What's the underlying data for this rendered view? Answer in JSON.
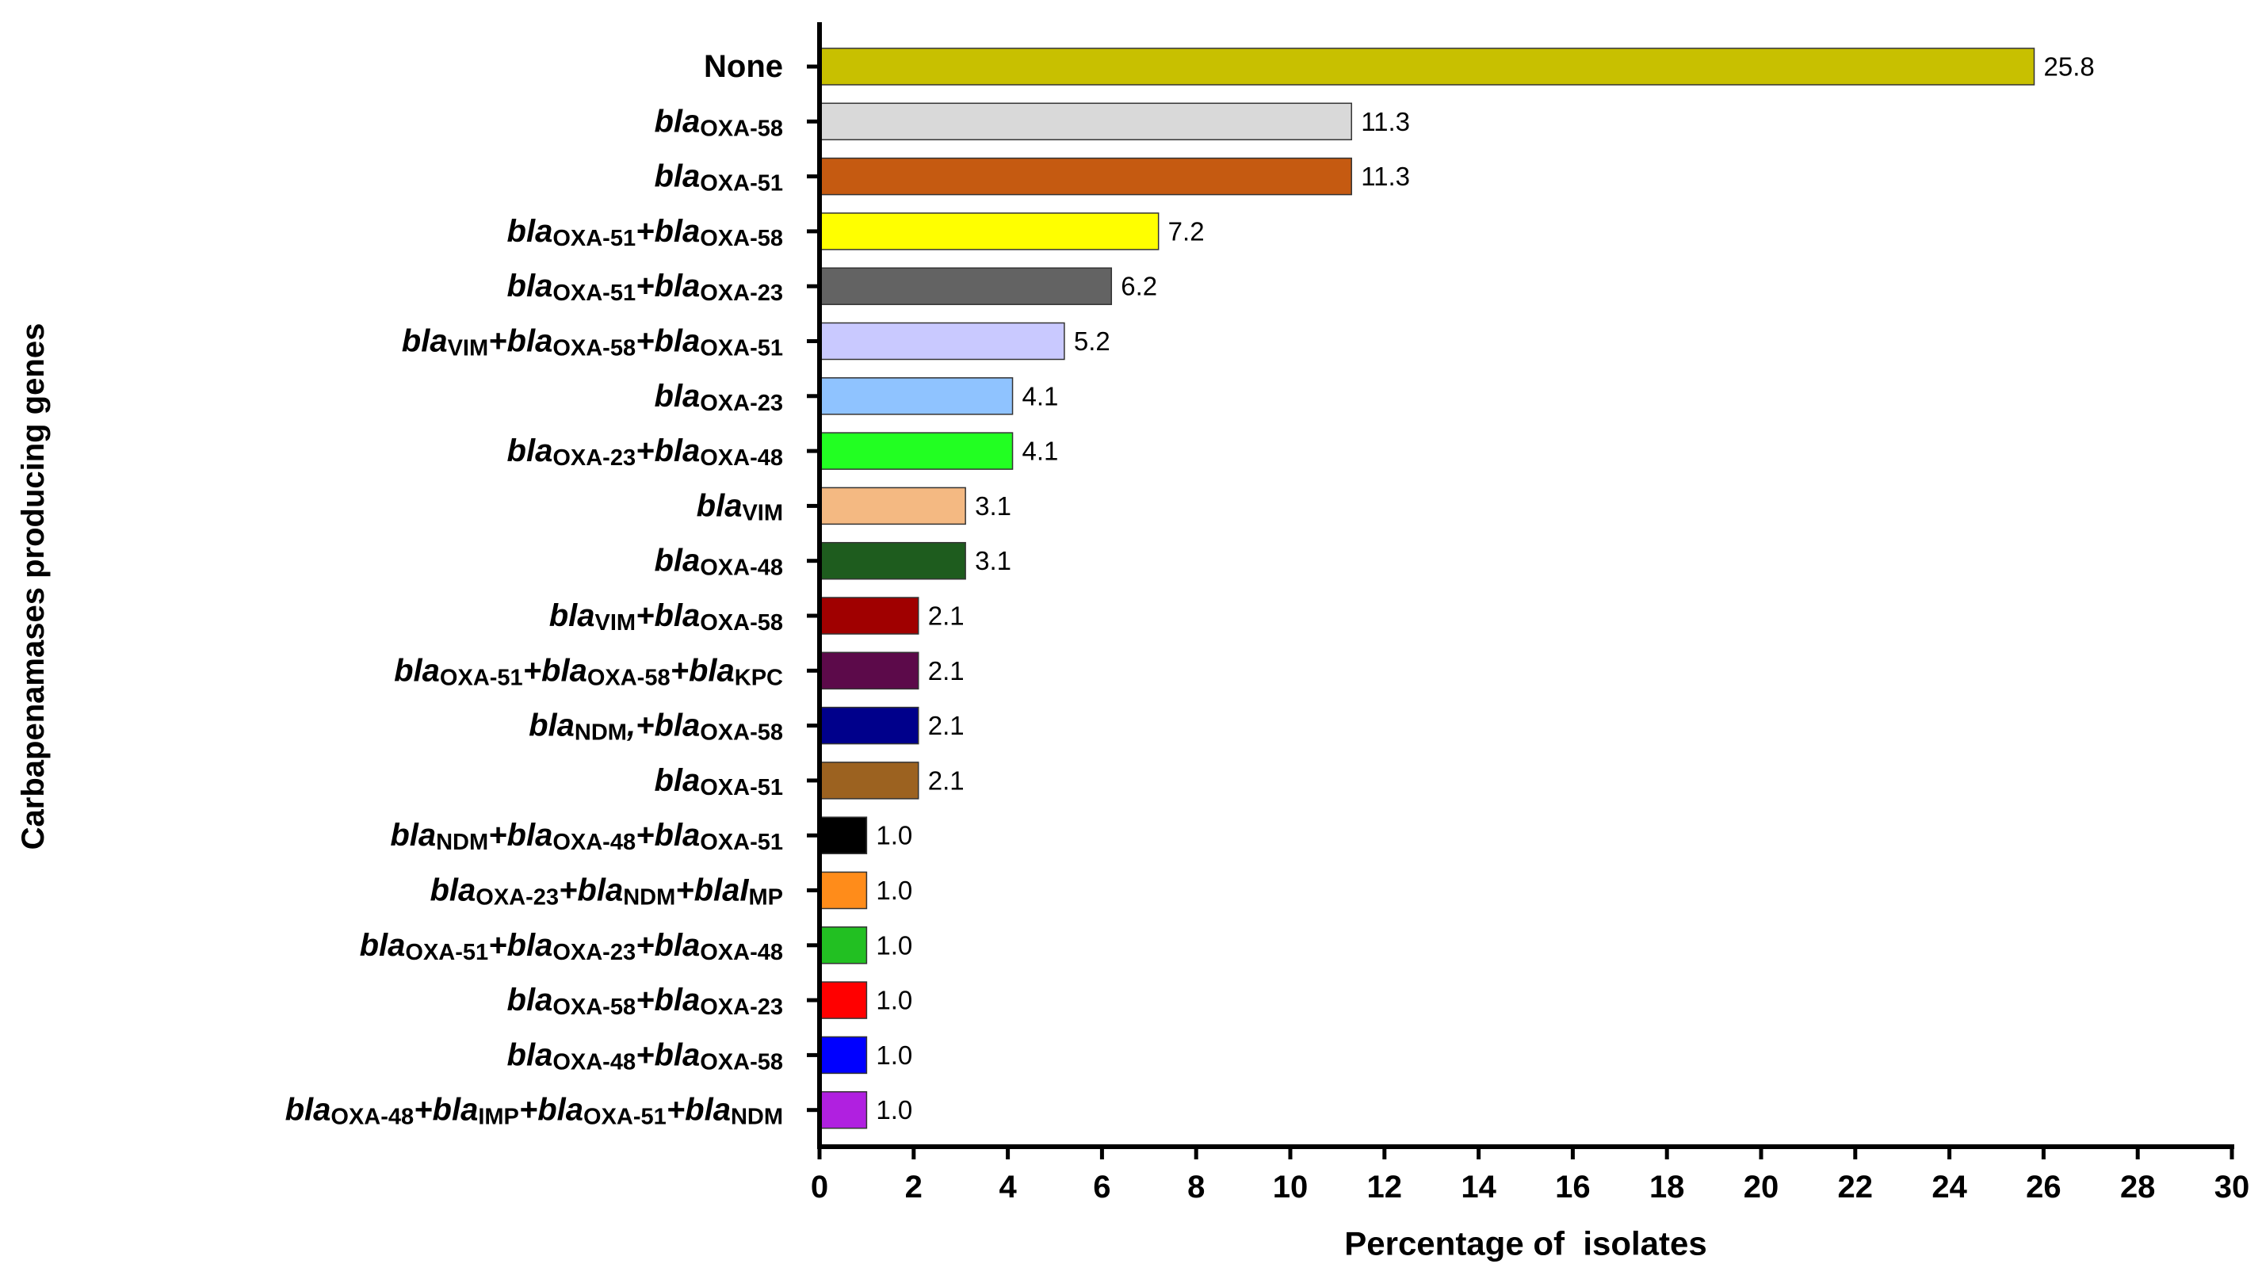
{
  "chart_data": {
    "type": "barh",
    "xlabel": "Percentage of  isolates",
    "ylabel": "Carbapenamases producing genes",
    "categories": [
      [
        [
          "None"
        ]
      ],
      [
        [
          "bla",
          "OXA-58"
        ]
      ],
      [
        [
          "bla",
          "OXA-51"
        ]
      ],
      [
        [
          "bla",
          "OXA-51"
        ],
        [
          "+bla",
          "OXA-58"
        ]
      ],
      [
        [
          "bla",
          "OXA-51"
        ],
        [
          "+bla",
          "OXA-23"
        ]
      ],
      [
        [
          "bla",
          "VIM"
        ],
        [
          "+bla",
          "OXA-58"
        ],
        [
          "+bla",
          "OXA-51"
        ]
      ],
      [
        [
          "bla",
          "OXA-23"
        ]
      ],
      [
        [
          "bla",
          "OXA-23"
        ],
        [
          "+bla",
          "OXA-48"
        ]
      ],
      [
        [
          "bla",
          "VIM"
        ]
      ],
      [
        [
          "bla",
          "OXA-48"
        ]
      ],
      [
        [
          "bla",
          "VIM"
        ],
        [
          "+bla",
          "OXA-58"
        ]
      ],
      [
        [
          "bla",
          "OXA-51"
        ],
        [
          "+bla",
          "OXA-58"
        ],
        [
          "+bla",
          "KPC"
        ]
      ],
      [
        [
          "bla",
          "NDM"
        ],
        [
          ",+bla",
          "OXA-58"
        ]
      ],
      [
        [
          "bla",
          "OXA-51"
        ]
      ],
      [
        [
          "bla",
          "NDM"
        ],
        [
          "+bla",
          "OXA-48"
        ],
        [
          "+bla",
          "OXA-51"
        ]
      ],
      [
        [
          "bla",
          "OXA-23"
        ],
        [
          "+bla",
          "NDM"
        ],
        [
          "+blaI",
          "MP"
        ]
      ],
      [
        [
          "bla",
          "OXA-51"
        ],
        [
          "+bla",
          "OXA-23"
        ],
        [
          "+bla",
          "OXA-48"
        ]
      ],
      [
        [
          "bla",
          "OXA-58"
        ],
        [
          "+bla",
          "OXA-23"
        ]
      ],
      [
        [
          "bla",
          "OXA-48"
        ],
        [
          "+bla",
          "OXA-58"
        ]
      ],
      [
        [
          "bla",
          "OXA-48"
        ],
        [
          "+bla",
          "IMP"
        ],
        [
          "+bla",
          "OXA-51"
        ],
        [
          "+bla",
          "NDM"
        ]
      ]
    ],
    "values": [
      25.8,
      11.3,
      11.3,
      7.2,
      6.2,
      5.2,
      4.1,
      4.1,
      3.1,
      3.1,
      2.1,
      2.1,
      2.1,
      2.1,
      1.0,
      1.0,
      1.0,
      1.0,
      1.0,
      1.0
    ],
    "value_labels": [
      "25.8",
      "11.3",
      "11.3",
      "7.2",
      "6.2",
      "5.2",
      "4.1",
      "4.1",
      "3.1",
      "3.1",
      "2.1",
      "2.1",
      "2.1",
      "2.1",
      "1.0",
      "1.0",
      "1.0",
      "1.0",
      "1.0",
      "1.0"
    ],
    "colors": [
      "#c8c000",
      "#d9d9d9",
      "#c55a11",
      "#ffff00",
      "#636363",
      "#c9c9ff",
      "#8fc3ff",
      "#22ff22",
      "#f4b982",
      "#1e5c1e",
      "#a00000",
      "#5c0a4a",
      "#00008b",
      "#9c6220",
      "#000000",
      "#ff8c1a",
      "#22c022",
      "#ff0000",
      "#0000ff",
      "#b020e0"
    ],
    "xlim": [
      0,
      30
    ],
    "xticks": [
      0,
      2,
      4,
      6,
      8,
      10,
      12,
      14,
      16,
      18,
      20,
      22,
      24,
      26,
      28,
      30
    ]
  }
}
